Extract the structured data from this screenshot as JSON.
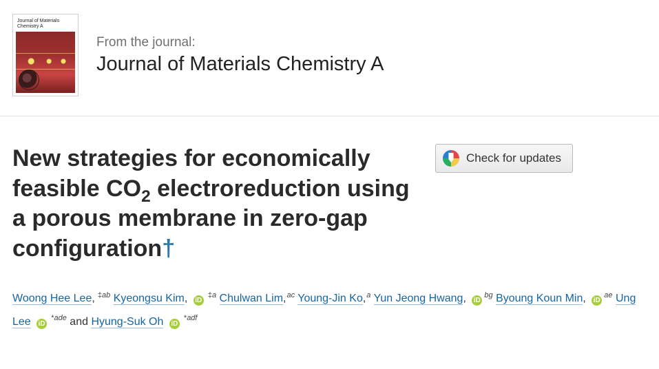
{
  "header": {
    "from_label": "From the journal:",
    "journal_name": "Journal of Materials Chemistry A",
    "cover_text": "Journal of\nMaterials Chemistry A"
  },
  "check_updates_label": "Check for updates",
  "title": {
    "pre": "New strategies for economically feasible CO",
    "sub": "2",
    "post": " electroreduction using a porous membrane in zero-gap configuration",
    "dagger": "†"
  },
  "authors": [
    {
      "name": "Woong Hee Lee",
      "orcid": false,
      "marks": "‡",
      "affil": "ab",
      "sep": ","
    },
    {
      "name": "Kyeongsu Kim",
      "orcid": true,
      "marks": "‡",
      "affil": "a",
      "sep": ","
    },
    {
      "name": "Chulwan Lim",
      "orcid": false,
      "marks": "",
      "affil": "ac",
      "sep": ","
    },
    {
      "name": "Young-Jin Ko",
      "orcid": false,
      "marks": "",
      "affil": "a",
      "sep": ","
    },
    {
      "name": "Yun Jeong Hwang",
      "orcid": true,
      "marks": "",
      "affil": "bg",
      "sep": ","
    },
    {
      "name": "Byoung Koun Min",
      "orcid": true,
      "marks": "",
      "affil": "ae",
      "sep": ","
    },
    {
      "name": "Ung Lee",
      "orcid": true,
      "marks": "*",
      "affil": "ade",
      "sep": "and"
    },
    {
      "name": "Hyung-Suk Oh",
      "orcid": true,
      "marks": "*",
      "affil": "adf",
      "sep": ""
    }
  ],
  "colors": {
    "link": "#1565a2",
    "orcid": "#a6ce39",
    "text": "#333333",
    "muted": "#6f6f6f"
  }
}
